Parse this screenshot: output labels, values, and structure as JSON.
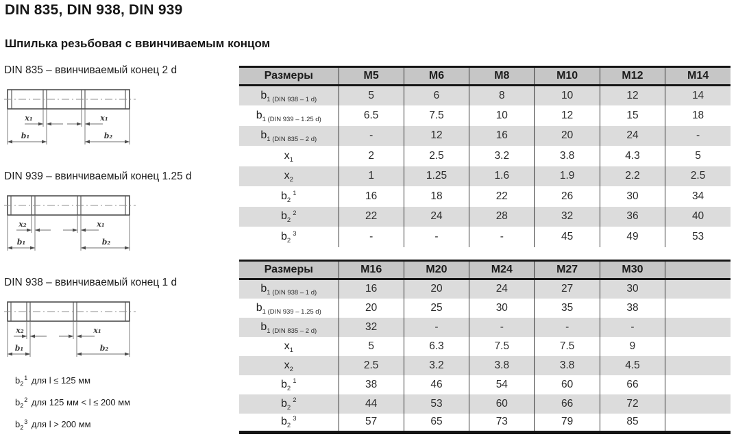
{
  "page": {
    "title": "DIN 835, DIN 938, DIN 939",
    "subtitle": "Шпилька резьбовая с ввинчиваемым концом"
  },
  "colors": {
    "header_bg": "#c6c6c6",
    "stripe_bg": "#dcdcdc",
    "border": "#151515"
  },
  "diagrams": [
    {
      "caption": "DIN 835 – ввинчиваемый конец 2 d",
      "labels": {
        "left_x": "x₁",
        "right_x": "x₁",
        "left_b": "b₁",
        "right_b": "b₂"
      }
    },
    {
      "caption": "DIN 939 – ввинчиваемый конец 1.25 d",
      "labels": {
        "left_x": "x₂",
        "right_x": "x₁",
        "left_b": "b₁",
        "right_b": "b₂"
      }
    },
    {
      "caption": "DIN 938 – ввинчиваемый конец 1 d",
      "labels": {
        "left_x": "x₂",
        "right_x": "x₁",
        "left_b": "b₁",
        "right_b": "b₂"
      }
    }
  ],
  "footnotes": [
    {
      "base": "b",
      "sub": "2",
      "sup": "1",
      "rest": "для l ≤ 125 мм"
    },
    {
      "base": "b",
      "sub": "2",
      "sup": "2",
      "rest": "для 125 мм < l ≤ 200 мм"
    },
    {
      "base": "b",
      "sub": "2",
      "sup": "3",
      "rest": "для l > 200 мм"
    }
  ],
  "tables": [
    {
      "header": [
        "Размеры",
        "M5",
        "M6",
        "M8",
        "M10",
        "M12",
        "M14"
      ],
      "rows": [
        {
          "label": {
            "base": "b",
            "sub": "1 (DIN 938 – 1 d)",
            "sup": ""
          },
          "values": [
            "5",
            "6",
            "8",
            "10",
            "12",
            "14"
          ]
        },
        {
          "label": {
            "base": "b",
            "sub": "1 (DIN 939 – 1.25 d)",
            "sup": ""
          },
          "values": [
            "6.5",
            "7.5",
            "10",
            "12",
            "15",
            "18"
          ]
        },
        {
          "label": {
            "base": "b",
            "sub": "1 (DIN 835 – 2 d)",
            "sup": ""
          },
          "values": [
            "-",
            "12",
            "16",
            "20",
            "24",
            "-"
          ]
        },
        {
          "label": {
            "base": "x",
            "sub": "1",
            "sup": ""
          },
          "values": [
            "2",
            "2.5",
            "3.2",
            "3.8",
            "4.3",
            "5"
          ]
        },
        {
          "label": {
            "base": "x",
            "sub": "2",
            "sup": ""
          },
          "values": [
            "1",
            "1.25",
            "1.6",
            "1.9",
            "2.2",
            "2.5"
          ]
        },
        {
          "label": {
            "base": "b",
            "sub": "2",
            "sup": "1"
          },
          "values": [
            "16",
            "18",
            "22",
            "26",
            "30",
            "34"
          ]
        },
        {
          "label": {
            "base": "b",
            "sub": "2",
            "sup": "2"
          },
          "values": [
            "22",
            "24",
            "28",
            "32",
            "36",
            "40"
          ]
        },
        {
          "label": {
            "base": "b",
            "sub": "2",
            "sup": "3"
          },
          "values": [
            "-",
            "-",
            "-",
            "45",
            "49",
            "53"
          ]
        }
      ]
    },
    {
      "header": [
        "Размеры",
        "M16",
        "M20",
        "M24",
        "M27",
        "M30",
        ""
      ],
      "rows": [
        {
          "label": {
            "base": "b",
            "sub": "1 (DIN 938 – 1 d)",
            "sup": ""
          },
          "values": [
            "16",
            "20",
            "24",
            "27",
            "30",
            ""
          ]
        },
        {
          "label": {
            "base": "b",
            "sub": "1 (DIN 939 – 1.25 d)",
            "sup": ""
          },
          "values": [
            "20",
            "25",
            "30",
            "35",
            "38",
            ""
          ]
        },
        {
          "label": {
            "base": "b",
            "sub": "1 (DIN 835 – 2 d)",
            "sup": ""
          },
          "values": [
            "32",
            "-",
            "-",
            "-",
            "-",
            ""
          ]
        },
        {
          "label": {
            "base": "x",
            "sub": "1",
            "sup": ""
          },
          "values": [
            "5",
            "6.3",
            "7.5",
            "7.5",
            "9",
            ""
          ]
        },
        {
          "label": {
            "base": "x",
            "sub": "2",
            "sup": ""
          },
          "values": [
            "2.5",
            "3.2",
            "3.8",
            "3.8",
            "4.5",
            ""
          ]
        },
        {
          "label": {
            "base": "b",
            "sub": "2",
            "sup": "1"
          },
          "values": [
            "38",
            "46",
            "54",
            "60",
            "66",
            ""
          ]
        },
        {
          "label": {
            "base": "b",
            "sub": "2",
            "sup": "2"
          },
          "values": [
            "44",
            "53",
            "60",
            "66",
            "72",
            ""
          ]
        },
        {
          "label": {
            "base": "b",
            "sub": "2",
            "sup": "3"
          },
          "values": [
            "57",
            "65",
            "73",
            "79",
            "85",
            ""
          ]
        }
      ]
    }
  ]
}
